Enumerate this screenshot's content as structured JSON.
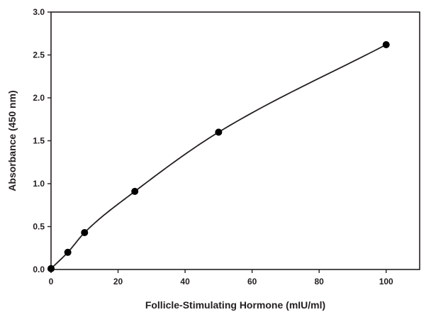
{
  "chart_data": {
    "type": "scatter",
    "title": "",
    "xlabel": "Follicle-Stimulating Hormone (mIU/ml)",
    "ylabel": "Absorbance (450 nm)",
    "xlim": [
      0,
      110
    ],
    "ylim": [
      0,
      3.0
    ],
    "x_ticks": [
      "0",
      "20",
      "40",
      "60",
      "80",
      "100"
    ],
    "y_ticks": [
      "0.0",
      "0.5",
      "1.0",
      "1.5",
      "2.0",
      "2.5",
      "3.0"
    ],
    "grid": false,
    "legend": "none",
    "fit_line": true,
    "series": [
      {
        "x": [
          0,
          5,
          10,
          25,
          50,
          100
        ],
        "y": [
          0.01,
          0.2,
          0.43,
          0.91,
          1.6,
          2.62
        ]
      }
    ],
    "marker_color": "#000000",
    "line_color": "#231f20"
  }
}
